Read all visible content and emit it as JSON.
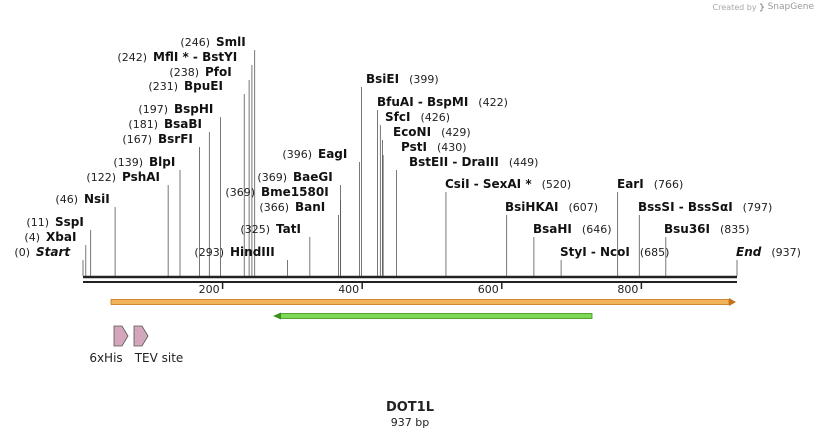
{
  "branding": {
    "created_by": "Created by",
    "brand": "SnapGene"
  },
  "construct": {
    "name": "DOT1L",
    "length_label": "937 bp",
    "length": 937
  },
  "axis": {
    "ticks": [
      200,
      400,
      600,
      800
    ]
  },
  "sites": [
    {
      "pos": 0,
      "name": "Start",
      "italic": true
    },
    {
      "pos": 4,
      "name": "XbaI"
    },
    {
      "pos": 11,
      "name": "SspI"
    },
    {
      "pos": 46,
      "name": "NsiI"
    },
    {
      "pos": 122,
      "name": "PshAI"
    },
    {
      "pos": 139,
      "name": "BlpI"
    },
    {
      "pos": 167,
      "name": "BsrFI"
    },
    {
      "pos": 181,
      "name": "BsaBI"
    },
    {
      "pos": 197,
      "name": "BspHI"
    },
    {
      "pos": 231,
      "name": "BpuEI"
    },
    {
      "pos": 238,
      "name": "PfoI"
    },
    {
      "pos": 242,
      "name": "MflI * - BstYI"
    },
    {
      "pos": 246,
      "name": "SmlI"
    },
    {
      "pos": 293,
      "name": "HindIII"
    },
    {
      "pos": 325,
      "name": "TatI"
    },
    {
      "pos": 366,
      "name": "BanI"
    },
    {
      "pos": 369,
      "name": "Bme1580I"
    },
    {
      "pos": 369,
      "name": "BaeGI"
    },
    {
      "pos": 396,
      "name": "EagI"
    },
    {
      "pos": 399,
      "name": "BsiEI"
    },
    {
      "pos": 422,
      "name": "BfuAI - BspMI"
    },
    {
      "pos": 426,
      "name": "SfcI"
    },
    {
      "pos": 429,
      "name": "EcoNI"
    },
    {
      "pos": 430,
      "name": "PstI"
    },
    {
      "pos": 449,
      "name": "BstEII - DraIII"
    },
    {
      "pos": 520,
      "name": "CsiI - SexAI *"
    },
    {
      "pos": 607,
      "name": "BsiHKAI"
    },
    {
      "pos": 646,
      "name": "BsaHI"
    },
    {
      "pos": 685,
      "name": "StyI - NcoI"
    },
    {
      "pos": 766,
      "name": "EarI"
    },
    {
      "pos": 797,
      "name": "BssSI - BssSαI"
    },
    {
      "pos": 835,
      "name": "Bsu36I"
    },
    {
      "pos": 937,
      "name": "End",
      "italic": true
    }
  ],
  "features": [
    {
      "name": "6xHis",
      "type": "tag",
      "color": "#d4a6bd"
    },
    {
      "name": "TEV site",
      "type": "site",
      "color": "#d4a6bd"
    }
  ],
  "colors": {
    "orf_fill": "#f0b35a",
    "orf_stroke": "#c4731a",
    "primer_fill": "#7ed957",
    "primer_stroke": "#3d8f1d",
    "backbone": "#222222",
    "cut_line": "#555555"
  }
}
